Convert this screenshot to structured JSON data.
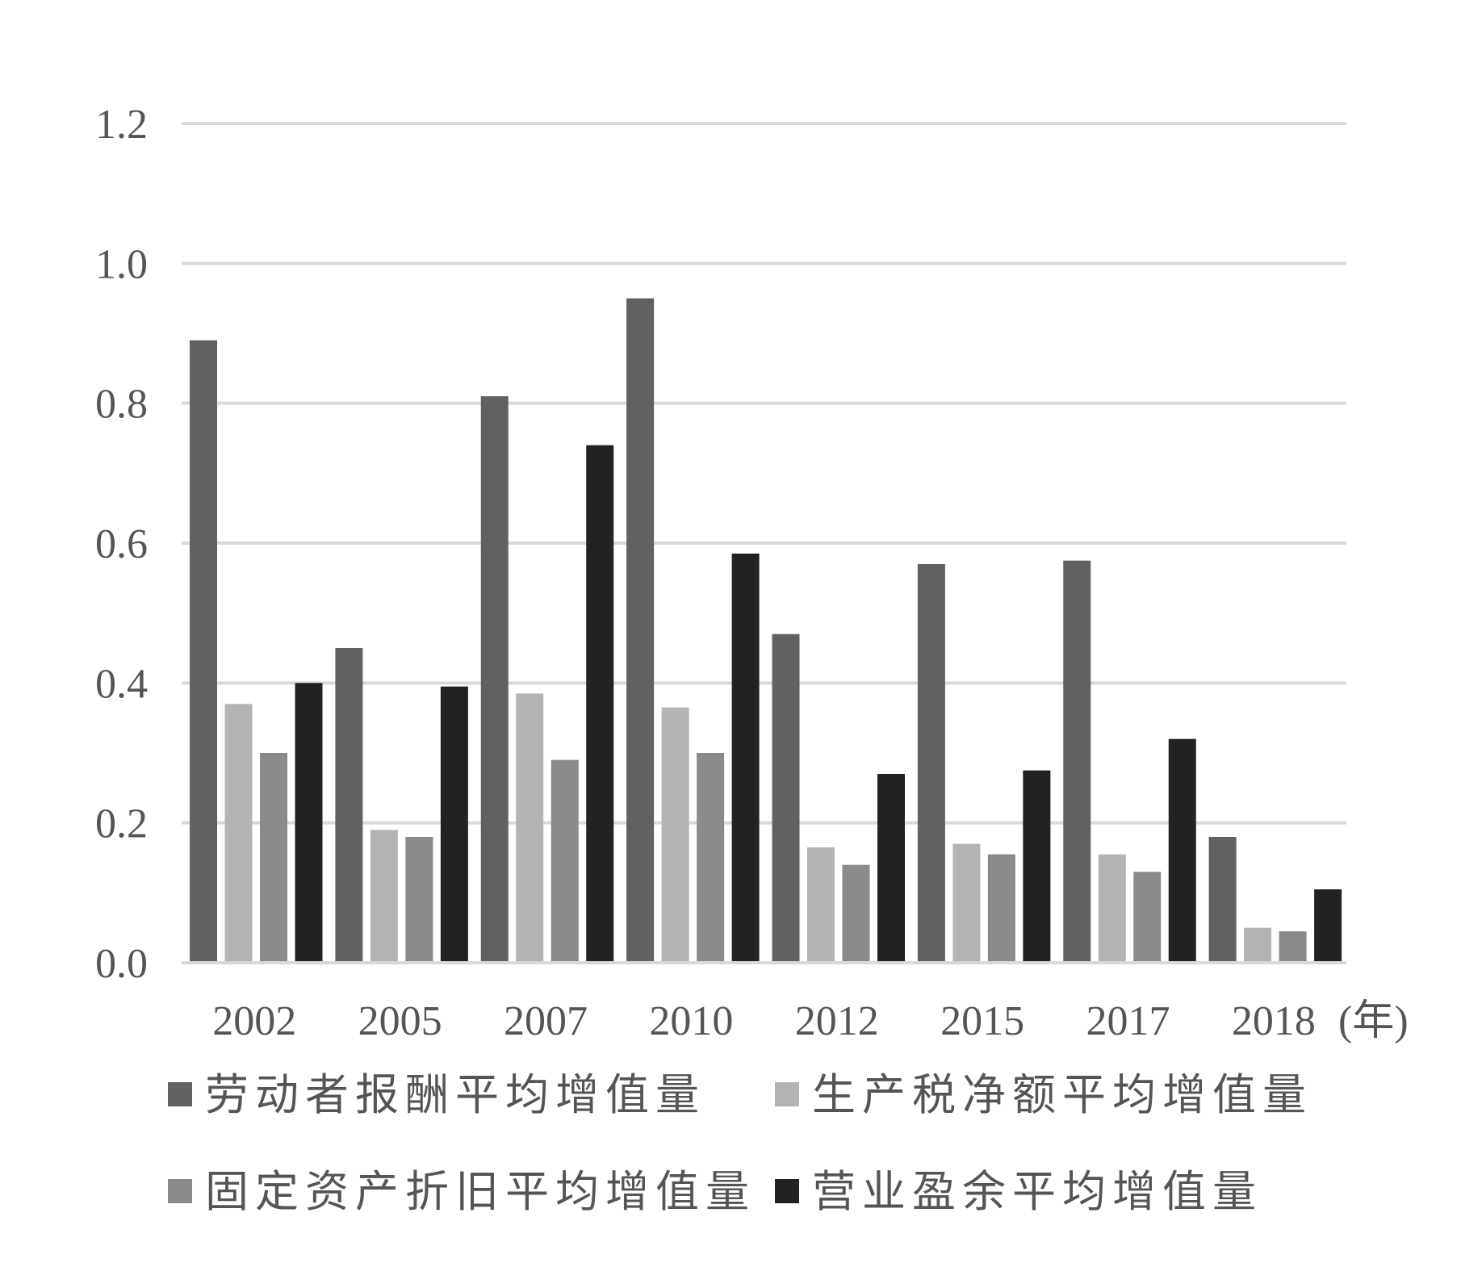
{
  "chart_data": {
    "type": "bar",
    "categories": [
      "2002",
      "2005",
      "2007",
      "2010",
      "2012",
      "2015",
      "2017",
      "2018"
    ],
    "x_unit": "(年)",
    "ylim": [
      0,
      1.2
    ],
    "yticks": [
      "0.0",
      "0.2",
      "0.4",
      "0.6",
      "0.8",
      "1.0",
      "1.2"
    ],
    "ytick_values": [
      0,
      0.2,
      0.4,
      0.6,
      0.8,
      1.0,
      1.2
    ],
    "grid": true,
    "legend_position": "bottom",
    "series": [
      {
        "name": "劳动者报酬平均增值量",
        "color": "#616161",
        "values": [
          0.89,
          0.45,
          0.81,
          0.95,
          0.47,
          0.57,
          0.575,
          0.18
        ]
      },
      {
        "name": "生产税净额平均增值量",
        "color": "#b3b3b3",
        "values": [
          0.37,
          0.19,
          0.385,
          0.365,
          0.165,
          0.17,
          0.155,
          0.05
        ]
      },
      {
        "name": "固定资产折旧平均增值量",
        "color": "#8a8a8a",
        "values": [
          0.3,
          0.18,
          0.29,
          0.3,
          0.14,
          0.155,
          0.13,
          0.045
        ]
      },
      {
        "name": "营业盈余平均增值量",
        "color": "#222222",
        "values": [
          0.4,
          0.395,
          0.74,
          0.585,
          0.27,
          0.275,
          0.32,
          0.105
        ]
      }
    ]
  }
}
